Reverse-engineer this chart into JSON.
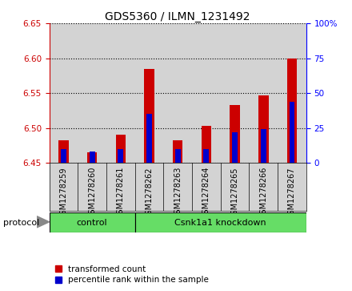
{
  "title": "GDS5360 / ILMN_1231492",
  "samples": [
    "GSM1278259",
    "GSM1278260",
    "GSM1278261",
    "GSM1278262",
    "GSM1278263",
    "GSM1278264",
    "GSM1278265",
    "GSM1278266",
    "GSM1278267"
  ],
  "red_values": [
    6.483,
    6.465,
    6.49,
    6.585,
    6.483,
    6.503,
    6.533,
    6.547,
    6.6
  ],
  "blue_values_pct": [
    10,
    8,
    10,
    35,
    10,
    10,
    22,
    24,
    44
  ],
  "ylim_left": [
    6.45,
    6.65
  ],
  "ylim_right": [
    0,
    100
  ],
  "yticks_left": [
    6.45,
    6.5,
    6.55,
    6.6,
    6.65
  ],
  "yticks_right": [
    0,
    25,
    50,
    75,
    100
  ],
  "ytick_labels_right": [
    "0",
    "25",
    "50",
    "75",
    "100%"
  ],
  "groups": [
    {
      "label": "control",
      "start": 0,
      "end": 3
    },
    {
      "label": "Csnk1a1 knockdown",
      "start": 3,
      "end": 9
    }
  ],
  "protocol_label": "protocol",
  "bar_width": 0.35,
  "red_color": "#CC0000",
  "blue_color": "#0000CC",
  "base_value": 6.45,
  "bar_bg_color": "#D3D3D3",
  "group_color": "#66DD66",
  "legend_red": "transformed count",
  "legend_blue": "percentile rank within the sample",
  "title_fontsize": 10,
  "label_fontsize": 7,
  "tick_fontsize": 7.5
}
